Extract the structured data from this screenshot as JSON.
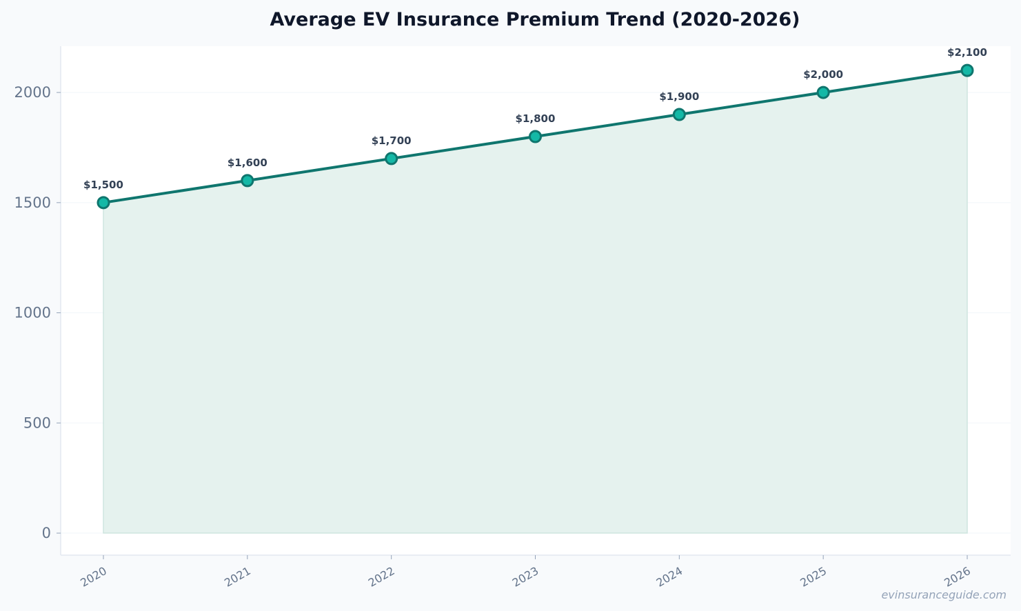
{
  "chart_data": {
    "type": "area",
    "title": "Average EV Insurance Premium Trend (2020-2026)",
    "xlabel": "",
    "ylabel": "",
    "categories": [
      "2020",
      "2021",
      "2022",
      "2023",
      "2024",
      "2025",
      "2026"
    ],
    "series": [
      {
        "values": [
          1500,
          1600,
          1700,
          1800,
          1900,
          2000,
          2100
        ],
        "labels": [
          "$1,500",
          "$1,600",
          "$1,700",
          "$1,800",
          "$1,900",
          "$2,000",
          "$2,100"
        ]
      }
    ],
    "ylim": [
      -100,
      2210
    ],
    "yticks": [
      0,
      500,
      1000,
      1500,
      2000
    ],
    "ytick_labels": [
      "0",
      "500",
      "1000",
      "1500",
      "2000"
    ],
    "grid": true,
    "legend": "none",
    "colors": {
      "line": "#0f766e",
      "marker_fill": "#14b8a6",
      "area_fill": "#e5f2ee",
      "background": "#f8fafc",
      "plot_background": "#ffffff"
    }
  },
  "watermark": "evinsuranceguide.com"
}
